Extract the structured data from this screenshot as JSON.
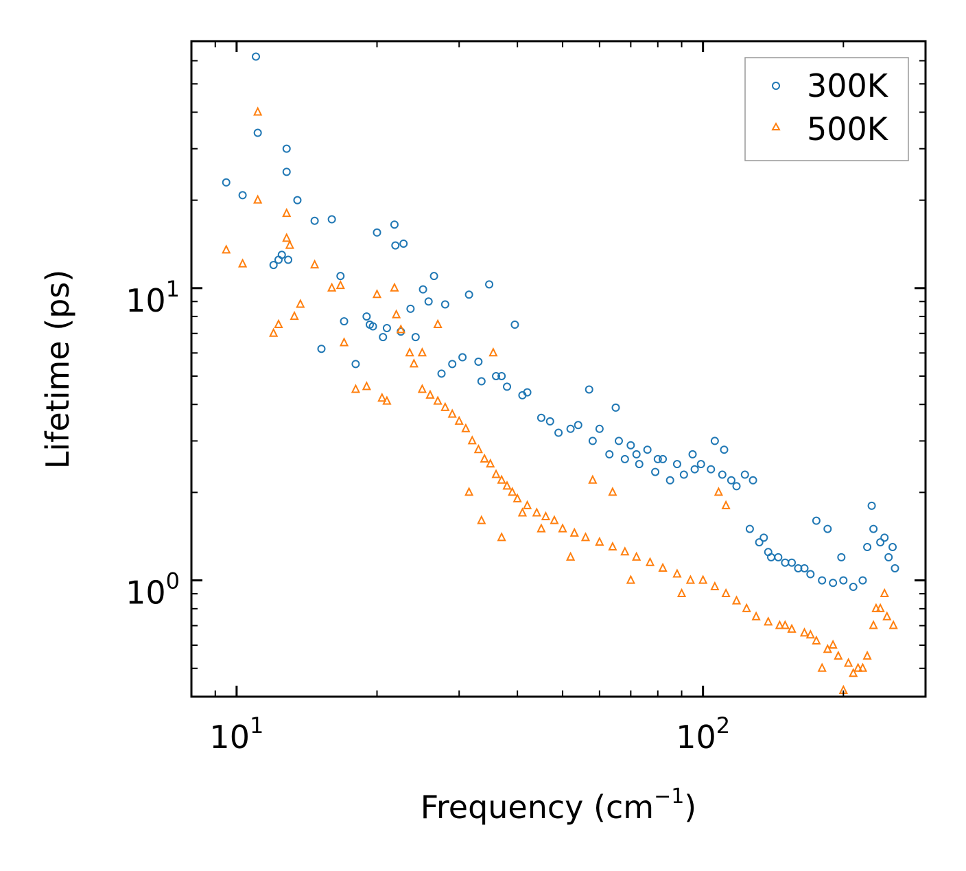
{
  "chart_data": {
    "type": "scatter",
    "title": "",
    "xlabel": "Frequency (cm",
    "xlabel_sup": "−1",
    "xlabel_close": ")",
    "ylabel": "Lifetime (ps)",
    "xscale": "log",
    "yscale": "log",
    "xlim": [
      8,
      300
    ],
    "ylim": [
      0.4,
      70
    ],
    "x_tick_labels": [
      {
        "value": 10,
        "base": "10",
        "exp": "1"
      },
      {
        "value": 100,
        "base": "10",
        "exp": "2"
      }
    ],
    "y_tick_labels": [
      {
        "value": 1,
        "base": "10",
        "exp": "0"
      },
      {
        "value": 10,
        "base": "10",
        "exp": "1"
      }
    ],
    "legend_position": "top-right",
    "series": [
      {
        "name": "300K",
        "marker": "circle",
        "color": "#1f77b4",
        "x": [
          9.5,
          10.3,
          11.0,
          11.1,
          12.0,
          12.8,
          12.8,
          13.5,
          14.7,
          16.0,
          16.7,
          19.0,
          20.0,
          21.8,
          21.9,
          22.8,
          26.5,
          34.8,
          39.5,
          31.5,
          25.8,
          28.0,
          25.1,
          23.6,
          20.6,
          19.3,
          18.0,
          15.2,
          17.0,
          12.3,
          12.5,
          12.9,
          29.0,
          33.0,
          37.0,
          42.0,
          47.0,
          54.0,
          60.0,
          66.0,
          70.0,
          76.0,
          82.0,
          88.0,
          96.0,
          104.0,
          110.0,
          118.0,
          126.0,
          132.0,
          140.0,
          150.0,
          160.0,
          170.0,
          180.0,
          190.0,
          200.0,
          210.0,
          220.0,
          225.0,
          232.0,
          240.0,
          250.0,
          258.0,
          106.0,
          111.0,
          99.0,
          91.0,
          85.0,
          79.0,
          73.0,
          68.0,
          63.0,
          58.0,
          52.0,
          49.0,
          45.0,
          41.0,
          38.0,
          36.0,
          33.5,
          30.5,
          27.5,
          24.2,
          22.5,
          21.0,
          19.6,
          175.0,
          185.0,
          198.0,
          230.0,
          245.0,
          255.0,
          138.0,
          145.0,
          155.0,
          165.0,
          57.0,
          65.0,
          72.0,
          80.0,
          95.0,
          115.0,
          123.0,
          128.0,
          135.0
        ],
        "y": [
          23.0,
          20.8,
          62.0,
          34.0,
          12.0,
          30.0,
          25.0,
          20.0,
          17.0,
          17.2,
          11.0,
          8.0,
          15.5,
          16.5,
          14.0,
          14.2,
          11.0,
          10.3,
          7.5,
          9.5,
          9.0,
          8.8,
          9.9,
          8.5,
          6.8,
          7.5,
          5.5,
          6.2,
          7.7,
          12.5,
          13.0,
          12.5,
          5.5,
          5.6,
          5.0,
          4.4,
          3.5,
          3.4,
          3.3,
          3.0,
          2.9,
          2.8,
          2.6,
          2.5,
          2.4,
          2.4,
          2.3,
          2.1,
          1.5,
          1.35,
          1.2,
          1.15,
          1.1,
          1.05,
          1.0,
          0.98,
          1.0,
          0.95,
          1.0,
          1.3,
          1.5,
          1.35,
          1.2,
          1.1,
          3.0,
          2.8,
          2.5,
          2.3,
          2.2,
          2.35,
          2.5,
          2.6,
          2.7,
          3.0,
          3.3,
          3.2,
          3.6,
          4.3,
          4.6,
          5.0,
          4.8,
          5.8,
          5.1,
          6.8,
          7.1,
          7.3,
          7.4,
          1.6,
          1.5,
          1.2,
          1.8,
          1.4,
          1.3,
          1.25,
          1.2,
          1.15,
          1.1,
          4.5,
          3.9,
          2.7,
          2.6,
          2.7,
          2.2,
          2.3,
          2.2,
          1.4
        ]
      },
      {
        "name": "500K",
        "marker": "triangle",
        "color": "#ff7f0e",
        "x": [
          9.5,
          10.3,
          11.1,
          11.1,
          12.0,
          12.3,
          12.8,
          12.8,
          13.0,
          13.3,
          13.7,
          14.7,
          16.0,
          16.7,
          17.0,
          18.0,
          19.0,
          20.0,
          20.5,
          21.0,
          21.8,
          22.0,
          22.5,
          23.5,
          24.0,
          25.0,
          26.0,
          27.0,
          28.0,
          29.0,
          30.0,
          31.0,
          32.0,
          33.0,
          34.0,
          35.0,
          36.0,
          37.0,
          38.0,
          39.0,
          40.0,
          42.0,
          44.0,
          46.0,
          48.0,
          50.0,
          53.0,
          56.0,
          60.0,
          64.0,
          68.0,
          72.0,
          77.0,
          82.0,
          88.0,
          94.0,
          100.0,
          106.0,
          112.0,
          118.0,
          124.0,
          130.0,
          138.0,
          146.0,
          155.0,
          165.0,
          175.0,
          185.0,
          195.0,
          205.0,
          215.0,
          225.0,
          232.0,
          240.0,
          248.0,
          256.0,
          25.0,
          27.0,
          33.5,
          35.5,
          58.0,
          64.0,
          108.0,
          112.0,
          180.0,
          200.0,
          235.0,
          31.5,
          37.0,
          41.0,
          45.0,
          52.0,
          70.0,
          90.0,
          150.0,
          170.0,
          190.0,
          210.0,
          220.0,
          245.0
        ],
        "y": [
          13.5,
          12.1,
          40.0,
          20.0,
          7.0,
          7.5,
          18.0,
          14.8,
          14.0,
          8.0,
          8.8,
          12.0,
          10.0,
          10.2,
          6.5,
          4.5,
          4.6,
          9.5,
          4.2,
          4.1,
          10.0,
          8.1,
          7.2,
          6.0,
          5.5,
          4.5,
          4.3,
          4.1,
          3.9,
          3.7,
          3.5,
          3.3,
          3.0,
          2.8,
          2.6,
          2.5,
          2.3,
          2.2,
          2.1,
          2.0,
          1.9,
          1.8,
          1.7,
          1.65,
          1.6,
          1.5,
          1.45,
          1.4,
          1.35,
          1.3,
          1.25,
          1.2,
          1.15,
          1.1,
          1.05,
          1.0,
          1.0,
          0.95,
          0.9,
          0.85,
          0.8,
          0.75,
          0.72,
          0.7,
          0.68,
          0.66,
          0.62,
          0.58,
          0.55,
          0.52,
          0.5,
          0.55,
          0.7,
          0.8,
          0.75,
          0.7,
          6.0,
          7.5,
          1.6,
          6.0,
          2.2,
          2.0,
          2.0,
          1.8,
          0.5,
          0.42,
          0.8,
          2.0,
          1.4,
          1.7,
          1.5,
          1.2,
          1.0,
          0.9,
          0.7,
          0.65,
          0.6,
          0.48,
          0.5,
          0.9
        ]
      }
    ]
  }
}
